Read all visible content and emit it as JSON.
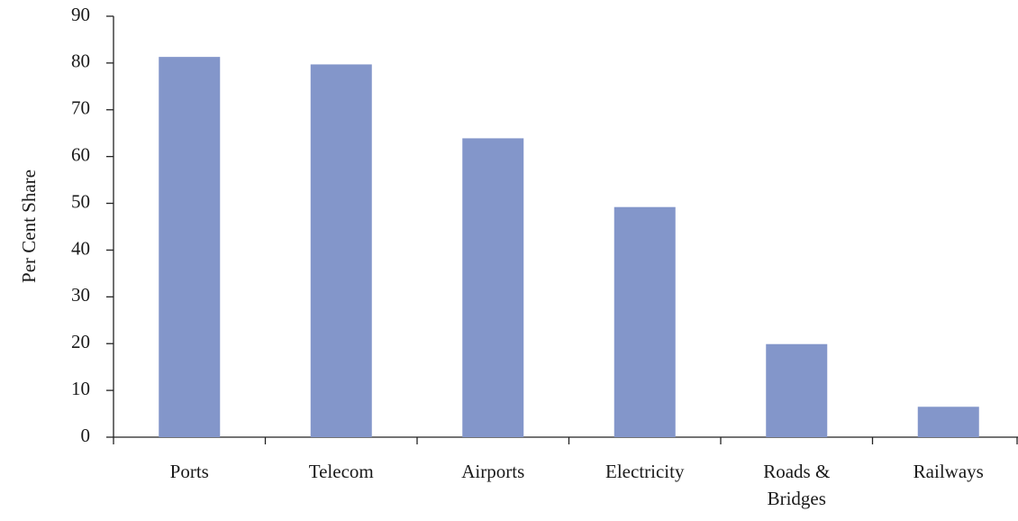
{
  "chart_data": {
    "type": "bar",
    "y_label": "Per Cent Share",
    "categories": [
      "Ports",
      "Telecom",
      "Airports",
      "Electricity",
      "Roads & Bridges",
      "Railways"
    ],
    "values": [
      81.3,
      79.7,
      63.9,
      49.2,
      19.9,
      6.5
    ],
    "color": "#8396ca",
    "ylim": [
      0,
      90
    ],
    "yticks": [
      0,
      10,
      20,
      30,
      40,
      50,
      60,
      70,
      80,
      90
    ],
    "grid": false
  }
}
